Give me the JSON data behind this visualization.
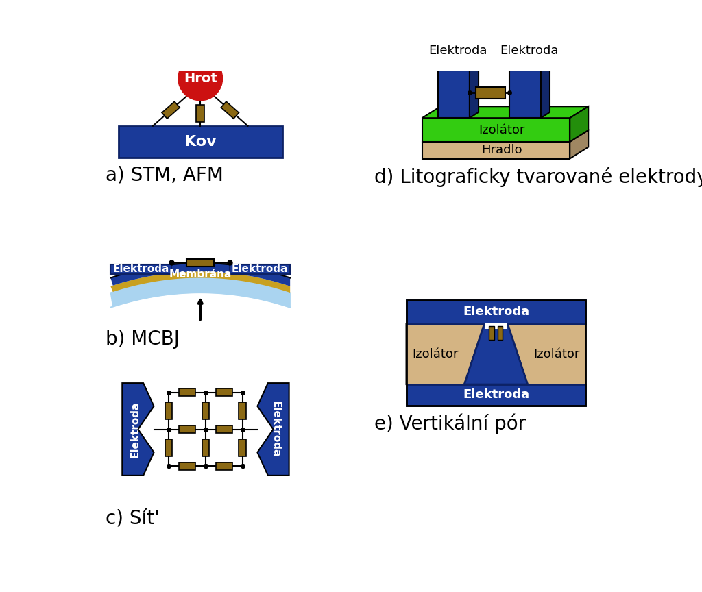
{
  "bg_color": "#ffffff",
  "blue_color": "#1a3a99",
  "dark_blue": "#0d2266",
  "red_color": "#cc1111",
  "brown_color": "#8B6914",
  "green_color": "#33cc11",
  "tan_color": "#d4b483",
  "light_blue": "#aad4f0",
  "gold_color": "#c8a020",
  "label_a": "a) STM, AFM",
  "label_b": "b) MCBJ",
  "label_c": "c) Sít'",
  "label_d": "d) Litograficky tvarované elektrody",
  "label_e": "e) Vertikální pór",
  "text_kov": "Kov",
  "text_hrot": "Hrot",
  "text_membrana": "Membrána",
  "text_izolator": "Izolátor",
  "text_hradlo": "Hradlo",
  "text_elektroda": "Elektroda",
  "font_size_label": 20,
  "font_size_small": 13
}
